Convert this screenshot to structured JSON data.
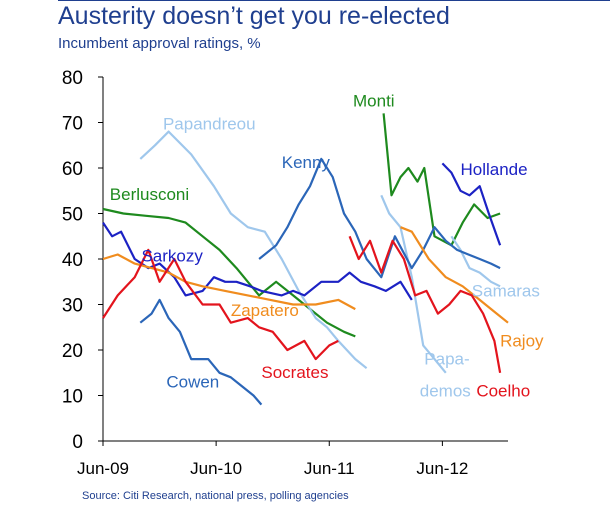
{
  "title": "Austerity doesn’t get you re-elected",
  "subtitle": "Incumbent approval ratings, %",
  "source": "Source: Citi Research, national press, polling agencies",
  "chart_data": {
    "type": "line",
    "title": "Austerity doesn’t get you re-elected",
    "ylabel": "Incumbent approval ratings, %",
    "ylim": [
      0,
      80
    ],
    "yticks": [
      0,
      10,
      20,
      30,
      40,
      50,
      60,
      70,
      80
    ],
    "xlim": [
      2009.42,
      2013.0
    ],
    "xticks": [
      {
        "label": "Jun-09",
        "value": 2009.42
      },
      {
        "label": "Jun-10",
        "value": 2010.42
      },
      {
        "label": "Jun-11",
        "value": 2011.42
      },
      {
        "label": "Jun-12",
        "value": 2012.42
      }
    ],
    "series": [
      {
        "name": "Berlusconi",
        "color": "#1e8a1e",
        "x": [
          2009.42,
          2009.6,
          2009.8,
          2010.0,
          2010.15,
          2010.3,
          2010.45,
          2010.6,
          2010.7,
          2010.8,
          2010.95,
          2011.1,
          2011.2,
          2011.3,
          2011.4,
          2011.55,
          2011.65
        ],
        "y": [
          51,
          50,
          49.5,
          49,
          48,
          45,
          42,
          38,
          35,
          32,
          35,
          32,
          30,
          28,
          26,
          24,
          23
        ]
      },
      {
        "name": "Monti",
        "color": "#1e8a1e",
        "x": [
          2011.9,
          2011.97,
          2012.05,
          2012.12,
          2012.2,
          2012.26,
          2012.35,
          2012.5,
          2012.6,
          2012.7,
          2012.82,
          2012.93
        ],
        "y": [
          72,
          54,
          58,
          60,
          57,
          60,
          45,
          43,
          48,
          52,
          49,
          50
        ]
      },
      {
        "name": "Papandreou",
        "color": "#9fc7ec",
        "x": [
          2009.75,
          2009.88,
          2010.0,
          2010.2,
          2010.4,
          2010.55,
          2010.7,
          2010.85,
          2011.0,
          2011.15,
          2011.3,
          2011.4,
          2011.5,
          2011.65,
          2011.75
        ],
        "y": [
          62,
          65,
          68,
          63,
          56,
          50,
          47,
          46,
          40,
          33,
          27,
          25,
          22,
          18,
          16
        ]
      },
      {
        "name": "Papa-demos",
        "color": "#9fc7ec",
        "x": [
          2011.88,
          2011.95,
          2012.05,
          2012.15,
          2012.25,
          2012.35,
          2012.45
        ],
        "y": [
          54,
          50,
          47,
          36,
          21,
          18,
          15
        ]
      },
      {
        "name": "Samaras",
        "color": "#9fc7ec",
        "x": [
          2012.5,
          2012.58,
          2012.66,
          2012.75,
          2012.85,
          2012.93
        ],
        "y": [
          45,
          42,
          38,
          37,
          35,
          34
        ]
      },
      {
        "name": "Kenny",
        "color": "#2b66b8",
        "x": [
          2010.8,
          2010.95,
          2011.05,
          2011.15,
          2011.25,
          2011.35,
          2011.45,
          2011.55,
          2011.65,
          2011.75,
          2011.88,
          2012.0,
          2012.15,
          2012.25,
          2012.35,
          2012.45,
          2012.55,
          2012.65,
          2012.75,
          2012.85,
          2012.93
        ],
        "y": [
          40,
          43,
          47,
          52,
          56,
          62,
          58,
          50,
          46,
          40,
          36,
          45,
          38,
          42,
          47,
          44,
          42,
          41,
          40,
          39,
          38
        ]
      },
      {
        "name": "Cowen",
        "color": "#2b66b8",
        "x": [
          2009.75,
          2009.85,
          2009.92,
          2010.0,
          2010.1,
          2010.2,
          2010.35,
          2010.45,
          2010.55,
          2010.65,
          2010.75,
          2010.82
        ],
        "y": [
          26,
          28,
          31,
          27,
          24,
          18,
          18,
          15,
          14,
          12,
          10,
          8
        ]
      },
      {
        "name": "Sarkozy",
        "color": "#1c22c4",
        "x": [
          2009.42,
          2009.5,
          2009.58,
          2009.7,
          2009.82,
          2009.92,
          2010.05,
          2010.15,
          2010.3,
          2010.4,
          2010.5,
          2010.6,
          2010.72,
          2010.82,
          2011.0,
          2011.1,
          2011.2,
          2011.35,
          2011.5,
          2011.6,
          2011.7,
          2011.82,
          2011.92,
          2012.05,
          2012.15
        ],
        "y": [
          48,
          45,
          46,
          40,
          38,
          39,
          36,
          32,
          33,
          36,
          35,
          35,
          34,
          33,
          32,
          33,
          32,
          35,
          35,
          37,
          35,
          34,
          33,
          35,
          31
        ]
      },
      {
        "name": "Hollande",
        "color": "#1c22c4",
        "x": [
          2012.42,
          2012.5,
          2012.58,
          2012.66,
          2012.75,
          2012.83,
          2012.93
        ],
        "y": [
          61,
          59,
          55,
          54,
          56,
          50,
          43
        ]
      },
      {
        "name": "Zapatero",
        "color": "#f08c1e",
        "x": [
          2009.42,
          2009.55,
          2009.7,
          2009.85,
          2010.0,
          2010.15,
          2010.3,
          2010.5,
          2010.7,
          2010.9,
          2011.1,
          2011.3,
          2011.5,
          2011.65
        ],
        "y": [
          40,
          41,
          39,
          38,
          37,
          35,
          34,
          33,
          32,
          31,
          30,
          30,
          31,
          29
        ]
      },
      {
        "name": "Rajoy",
        "color": "#f08c1e",
        "x": [
          2012.05,
          2012.15,
          2012.3,
          2012.45,
          2012.6,
          2012.75,
          2012.9,
          2013.0
        ],
        "y": [
          47,
          46,
          40,
          36,
          34,
          31,
          28,
          26
        ]
      },
      {
        "name": "Socrates",
        "color": "#e3141d",
        "x": [
          2009.42,
          2009.55,
          2009.7,
          2009.82,
          2009.92,
          2010.05,
          2010.15,
          2010.3,
          2010.45,
          2010.55,
          2010.7,
          2010.8,
          2010.92,
          2011.05,
          2011.2,
          2011.3,
          2011.42,
          2011.5
        ],
        "y": [
          27,
          32,
          36,
          42,
          35,
          40,
          35,
          30,
          30,
          26,
          27,
          25,
          24,
          20,
          22,
          18,
          21,
          22
        ]
      },
      {
        "name": "Coelho",
        "color": "#e3141d",
        "x": [
          2011.6,
          2011.68,
          2011.78,
          2011.88,
          2011.98,
          2012.08,
          2012.18,
          2012.28,
          2012.38,
          2012.48,
          2012.58,
          2012.68,
          2012.78,
          2012.88,
          2012.93
        ],
        "y": [
          45,
          40,
          44,
          37,
          44,
          40,
          32,
          33,
          28,
          30,
          33,
          32,
          28,
          22,
          15
        ]
      }
    ],
    "labels": [
      {
        "text": "Berlusconi",
        "color": "#1e8a1e",
        "x": 2009.48,
        "y": 53
      },
      {
        "text": "Monti",
        "color": "#1e8a1e",
        "x": 2011.63,
        "y": 73.5
      },
      {
        "text": "Papandreou",
        "color": "#9fc7ec",
        "x": 2009.95,
        "y": 68.5
      },
      {
        "text": "Kenny",
        "color": "#2b66b8",
        "x": 2011.0,
        "y": 60
      },
      {
        "text": "Hollande",
        "color": "#1c22c4",
        "x": 2012.58,
        "y": 58.5
      },
      {
        "text": "Sarkozy",
        "color": "#1c22c4",
        "x": 2009.76,
        "y": 39.5
      },
      {
        "text": "Zapatero",
        "color": "#f08c1e",
        "x": 2010.55,
        "y": 27.5
      },
      {
        "text": "Samaras",
        "color": "#9fc7ec",
        "x": 2012.68,
        "y": 31.8
      },
      {
        "text": "Rajoy",
        "color": "#f08c1e",
        "x": 2012.93,
        "y": 20.8
      },
      {
        "text": "Socrates",
        "color": "#e3141d",
        "x": 2010.82,
        "y": 13.8
      },
      {
        "text": "Papa-",
        "color": "#9fc7ec",
        "x": 2012.26,
        "y": 16.8
      },
      {
        "text": "demos",
        "color": "#9fc7ec",
        "x": 2012.22,
        "y": 9.8
      },
      {
        "text": "Cowen",
        "color": "#2b66b8",
        "x": 2009.98,
        "y": 11.8
      },
      {
        "text": "Coelho",
        "color": "#e3141d",
        "x": 2012.72,
        "y": 9.8
      }
    ]
  }
}
